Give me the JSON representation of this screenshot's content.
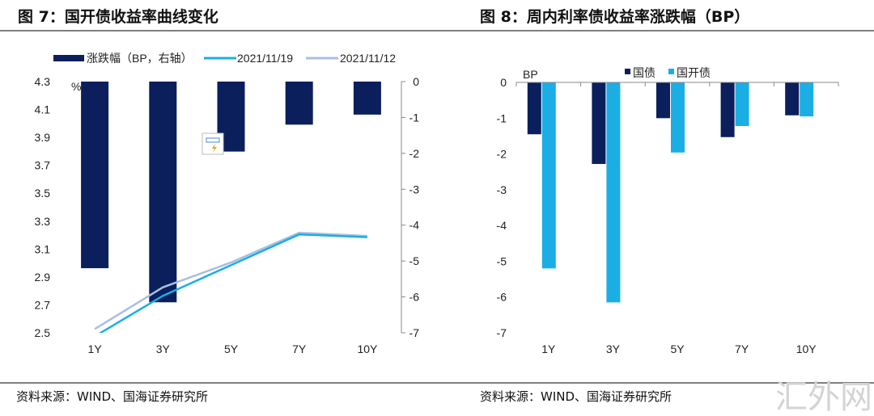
{
  "chart_data": [
    {
      "type": "bar+line",
      "figure_title": "图 7：国开债收益率曲线变化",
      "categories": [
        "1Y",
        "3Y",
        "5Y",
        "7Y",
        "10Y"
      ],
      "left_axis": {
        "unit": "%",
        "ylim": [
          2.5,
          4.3
        ],
        "ticks": [
          "4.3",
          "4.1",
          "3.9",
          "3.7",
          "3.5",
          "3.3",
          "3.1",
          "2.9",
          "2.7",
          "2.5"
        ]
      },
      "right_axis": {
        "ylim": [
          -7,
          0
        ],
        "ticks": [
          "0",
          "-1",
          "-2",
          "-3",
          "-4",
          "-5",
          "-6",
          "-7"
        ]
      },
      "series": [
        {
          "name": "涨跌幅（BP，右轴）",
          "kind": "bar",
          "axis": "right",
          "color": "#0a1f5c",
          "values": [
            -5.2,
            -6.15,
            -1.95,
            -1.2,
            -0.92
          ]
        },
        {
          "name": "2021/11/19",
          "kind": "line",
          "axis": "left",
          "color": "#1aaee5",
          "values": [
            2.475,
            2.765,
            2.985,
            3.205,
            3.185
          ]
        },
        {
          "name": "2021/11/12",
          "kind": "line",
          "axis": "left",
          "color": "#a9bfe0",
          "values": [
            2.527,
            2.826,
            3.004,
            3.217,
            3.194
          ]
        }
      ],
      "legend": "top",
      "source": "资料来源：WIND、国海证券研究所"
    },
    {
      "type": "bar",
      "figure_title": "图 8：周内利率债收益率涨跌幅（BP）",
      "ylabel": "BP",
      "categories": [
        "1Y",
        "3Y",
        "5Y",
        "7Y",
        "10Y"
      ],
      "ylim": [
        -7,
        0
      ],
      "ticks": [
        "0",
        "-1",
        "-2",
        "-3",
        "-4",
        "-5",
        "-6",
        "-7"
      ],
      "series": [
        {
          "name": "国债",
          "color": "#0a1f5c",
          "values": [
            -1.45,
            -2.28,
            -1.0,
            -1.53,
            -0.92
          ]
        },
        {
          "name": "国开债",
          "color": "#1aaee5",
          "values": [
            -5.2,
            -6.15,
            -1.96,
            -1.22,
            -0.95
          ]
        }
      ],
      "legend": "top",
      "source": "资料来源：WIND、国海证券研究所"
    }
  ],
  "watermark": "汇外网"
}
